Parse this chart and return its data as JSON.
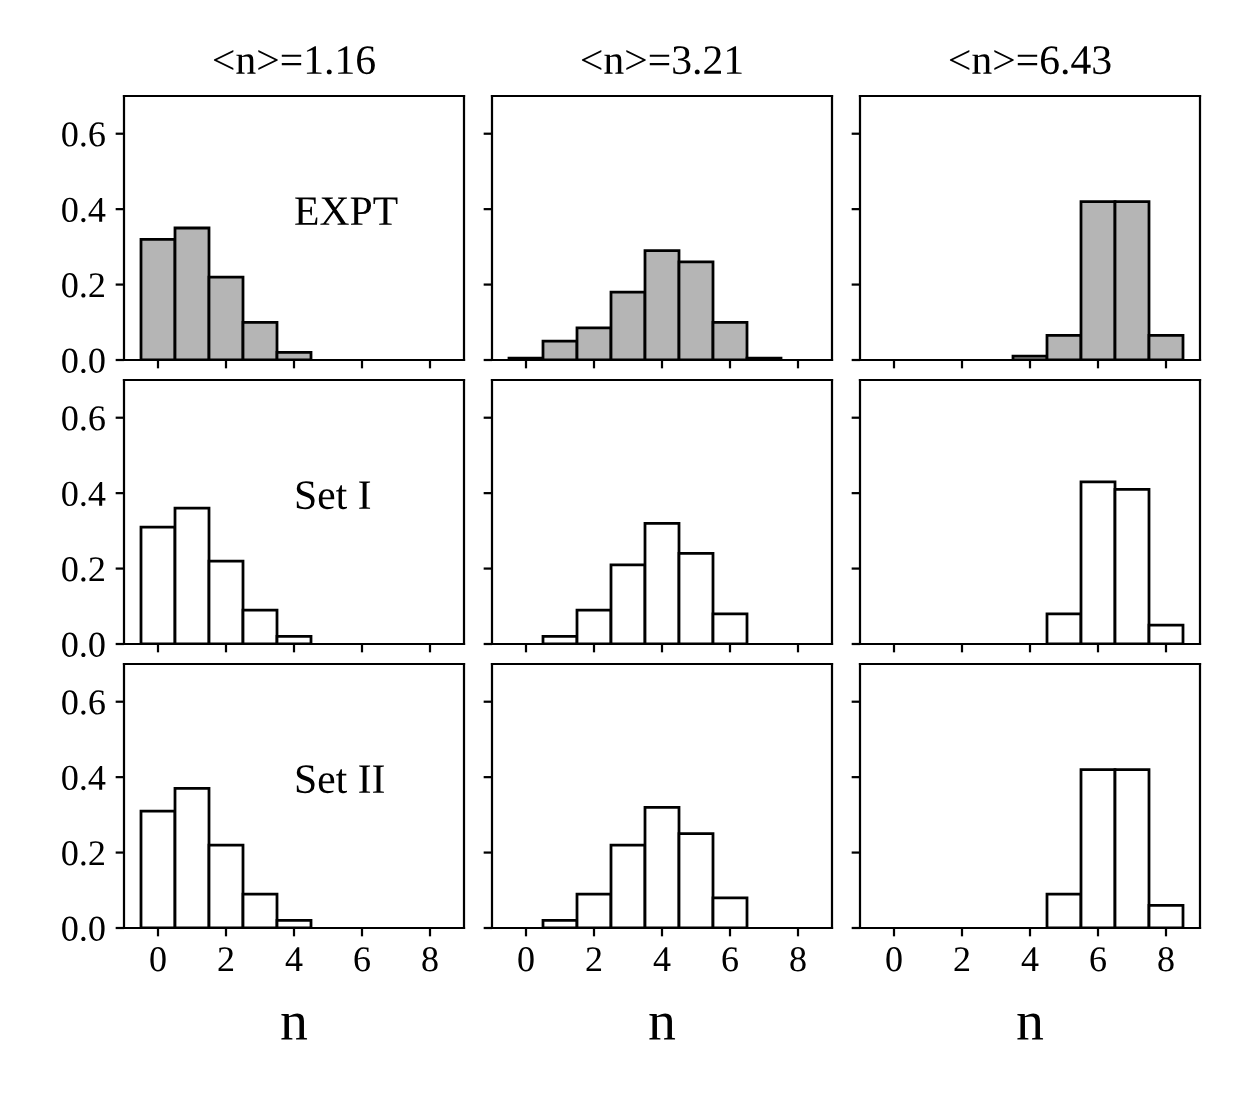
{
  "chart_data": [
    {
      "type": "histogram",
      "title": "<n>=1.16",
      "annotations": [
        "EXPT"
      ],
      "bins": [
        -0.5,
        0.5,
        1.5,
        2.5,
        3.5,
        4.5,
        5.5,
        6.5,
        7.5,
        8.5
      ],
      "values": [
        0.32,
        0.35,
        0.22,
        0.1,
        0.02,
        null,
        null,
        null,
        null
      ],
      "color": "#b5b5b5",
      "xlim": [
        -1,
        9
      ],
      "xticks": [
        0,
        2,
        4,
        6,
        8
      ],
      "ylim": [
        0,
        0.7
      ],
      "yticks": [
        {
          "value": 0,
          "label": "0.0"
        },
        {
          "value": 0.2,
          "label": "0.2"
        },
        {
          "value": 0.4,
          "label": "0.4"
        },
        {
          "value": 0.6,
          "label": "0.6"
        }
      ],
      "tick_labels": "y"
    },
    {
      "type": "histogram",
      "title": "<n>=3.21",
      "bins": [
        -0.5,
        0.5,
        1.5,
        2.5,
        3.5,
        4.5,
        5.5,
        6.5,
        7.5,
        8.5
      ],
      "values": [
        0.005,
        0.05,
        0.085,
        0.18,
        0.29,
        0.26,
        0.1,
        0.005,
        null
      ],
      "color": "#b5b5b5",
      "xlim": [
        -1,
        9
      ],
      "xticks": [
        0,
        2,
        4,
        6,
        8
      ],
      "ylim": [
        0,
        0.7
      ],
      "yticks": [
        0,
        0.2,
        0.4,
        0.6
      ],
      "tick_labels": false
    },
    {
      "type": "histogram",
      "title": "<n>=6.43",
      "bins": [
        -0.5,
        0.5,
        1.5,
        2.5,
        3.5,
        4.5,
        5.5,
        6.5,
        7.5,
        8.5
      ],
      "values": [
        null,
        null,
        null,
        null,
        0.01,
        0.065,
        0.42,
        0.42,
        0.065
      ],
      "color": "#b5b5b5",
      "xlim": [
        -1,
        9
      ],
      "xticks": [
        0,
        2,
        4,
        6,
        8
      ],
      "ylim": [
        0,
        0.7
      ],
      "yticks": [
        0,
        0.2,
        0.4,
        0.6
      ],
      "tick_labels": false
    },
    {
      "type": "histogram",
      "annotations": [
        "Set I"
      ],
      "bins": [
        -0.5,
        0.5,
        1.5,
        2.5,
        3.5,
        4.5,
        5.5,
        6.5,
        7.5,
        8.5
      ],
      "values": [
        0.31,
        0.36,
        0.22,
        0.09,
        0.02,
        null,
        null,
        null,
        null
      ],
      "color": "#ffffff",
      "xlim": [
        -1,
        9
      ],
      "xticks": [
        0,
        2,
        4,
        6,
        8
      ],
      "ylim": [
        0,
        0.7
      ],
      "yticks": [
        {
          "value": 0,
          "label": "0.0"
        },
        {
          "value": 0.2,
          "label": "0.2"
        },
        {
          "value": 0.4,
          "label": "0.4"
        },
        {
          "value": 0.6,
          "label": "0.6"
        }
      ],
      "tick_labels": "y"
    },
    {
      "type": "histogram",
      "bins": [
        -0.5,
        0.5,
        1.5,
        2.5,
        3.5,
        4.5,
        5.5,
        6.5,
        7.5,
        8.5
      ],
      "values": [
        null,
        0.02,
        0.09,
        0.21,
        0.32,
        0.24,
        0.08,
        null,
        null
      ],
      "color": "#ffffff",
      "xlim": [
        -1,
        9
      ],
      "xticks": [
        0,
        2,
        4,
        6,
        8
      ],
      "ylim": [
        0,
        0.7
      ],
      "yticks": [
        0,
        0.2,
        0.4,
        0.6
      ],
      "tick_labels": false
    },
    {
      "type": "histogram",
      "bins": [
        -0.5,
        0.5,
        1.5,
        2.5,
        3.5,
        4.5,
        5.5,
        6.5,
        7.5,
        8.5
      ],
      "values": [
        null,
        null,
        null,
        null,
        null,
        0.08,
        0.43,
        0.41,
        0.05
      ],
      "color": "#ffffff",
      "xlim": [
        -1,
        9
      ],
      "xticks": [
        0,
        2,
        4,
        6,
        8
      ],
      "ylim": [
        0,
        0.7
      ],
      "yticks": [
        0,
        0.2,
        0.4,
        0.6
      ],
      "tick_labels": false
    },
    {
      "type": "histogram",
      "annotations": [
        "Set II"
      ],
      "xlabel": "n",
      "bins": [
        -0.5,
        0.5,
        1.5,
        2.5,
        3.5,
        4.5,
        5.5,
        6.5,
        7.5,
        8.5
      ],
      "values": [
        0.31,
        0.37,
        0.22,
        0.09,
        0.02,
        null,
        null,
        null,
        null
      ],
      "color": "#ffffff",
      "xlim": [
        -1,
        9
      ],
      "xticks": [
        0,
        2,
        4,
        6,
        8
      ],
      "ylim": [
        0,
        0.7
      ],
      "yticks": [
        {
          "value": 0,
          "label": "0.0"
        },
        {
          "value": 0.2,
          "label": "0.2"
        },
        {
          "value": 0.4,
          "label": "0.4"
        },
        {
          "value": 0.6,
          "label": "0.6"
        }
      ]
    },
    {
      "type": "histogram",
      "xlabel": "n",
      "bins": [
        -0.5,
        0.5,
        1.5,
        2.5,
        3.5,
        4.5,
        5.5,
        6.5,
        7.5,
        8.5
      ],
      "values": [
        null,
        0.02,
        0.09,
        0.22,
        0.32,
        0.25,
        0.08,
        null,
        null
      ],
      "color": "#ffffff",
      "xlim": [
        -1,
        9
      ],
      "xticks": [
        0,
        2,
        4,
        6,
        8
      ],
      "ylim": [
        0,
        0.7
      ],
      "yticks": [
        0,
        0.2,
        0.4,
        0.6
      ],
      "tick_labels": "x"
    },
    {
      "type": "histogram",
      "xlabel": "n",
      "bins": [
        -0.5,
        0.5,
        1.5,
        2.5,
        3.5,
        4.5,
        5.5,
        6.5,
        7.5,
        8.5
      ],
      "values": [
        null,
        null,
        null,
        null,
        null,
        0.09,
        0.42,
        0.42,
        0.06
      ],
      "color": "#ffffff",
      "xlim": [
        -1,
        9
      ],
      "xticks": [
        0,
        2,
        4,
        6,
        8
      ],
      "ylim": [
        0,
        0.7
      ],
      "yticks": [
        0,
        0.2,
        0.4,
        0.6
      ],
      "tick_labels": "x"
    }
  ]
}
